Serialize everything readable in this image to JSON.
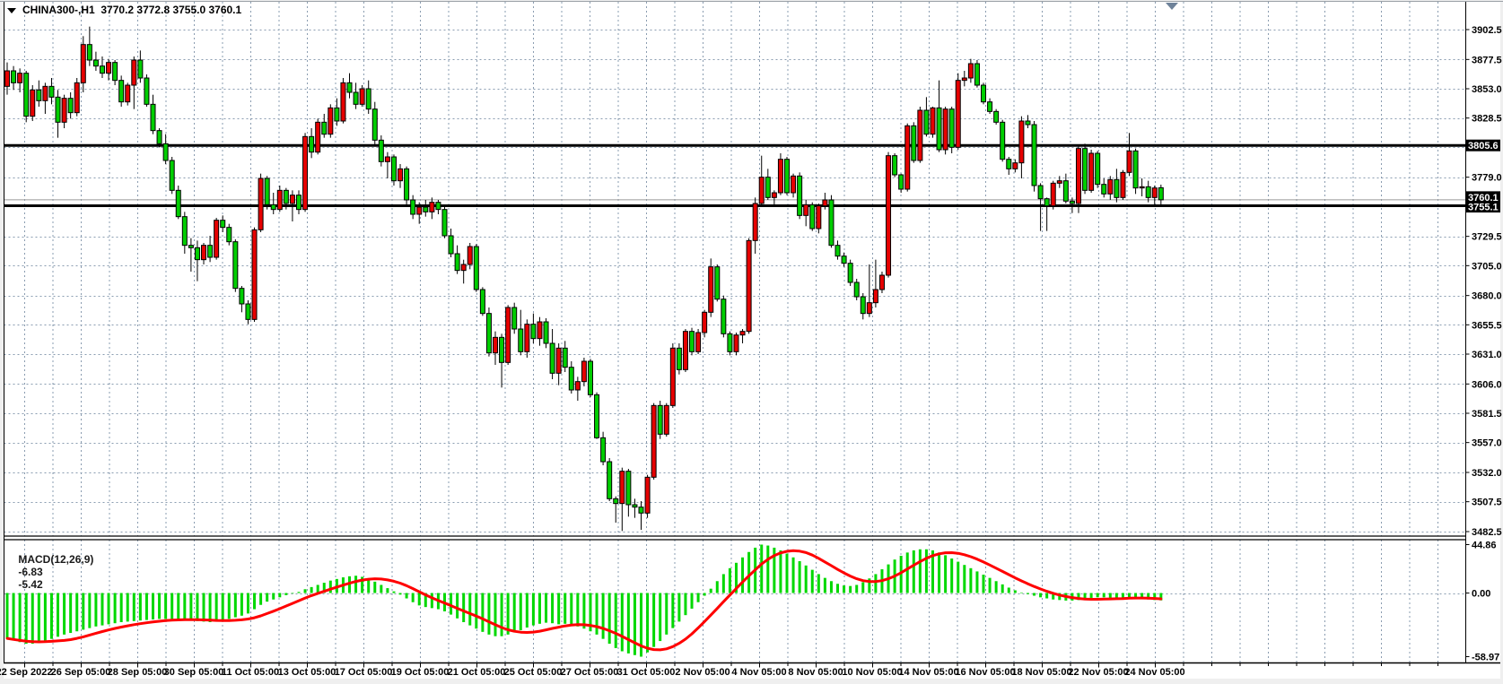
{
  "title": {
    "symbol_period": "CHINA300-,H1",
    "ohlc": "3770.2 3772.8 3755.0 3760.1",
    "open": "3770.2",
    "high": "3772.8",
    "low": "3755.0",
    "close": "3760.1"
  },
  "colors": {
    "bull_candle": "#e60000",
    "bear_candle": "#00ce00",
    "candle_border": "#000000",
    "macd_histogram": "#00d800",
    "macd_signal": "#ff0000",
    "grid": "#8a9cb0",
    "hline": "#000000",
    "current_price_line": "#999999",
    "tag_bg": "#000000",
    "tag_text": "#ffffff",
    "panel_bg": "#ffffff",
    "frame": "#000000",
    "shift_marker": "#6e8299"
  },
  "chart_data": {
    "type": "candlestick",
    "subpanel_type": "bar",
    "title": "CHINA300-,H1 3770.2 3772.8 3755.0 3760.1",
    "grid": true,
    "legend_position": "none",
    "price_axis": {
      "side": "right",
      "top_price": 3902.5,
      "bottom_price": 3482.5,
      "ticks": [
        {
          "p": 3902.5,
          "t": "3902.5"
        },
        {
          "p": 3877.5,
          "t": "3877.5"
        },
        {
          "p": 3853.0,
          "t": "3853.0"
        },
        {
          "p": 3828.5,
          "t": "3828.5"
        },
        {
          "p": 3804.0,
          "t": ""
        },
        {
          "p": 3779.0,
          "t": "3779.0"
        },
        {
          "p": 3754.5,
          "t": ""
        },
        {
          "p": 3729.5,
          "t": "3729.5"
        },
        {
          "p": 3705.0,
          "t": "3705.0"
        },
        {
          "p": 3680.0,
          "t": "3680.0"
        },
        {
          "p": 3655.5,
          "t": "3655.5"
        },
        {
          "p": 3631.0,
          "t": "3631.0"
        },
        {
          "p": 3606.0,
          "t": "3606.0"
        },
        {
          "p": 3581.5,
          "t": "3581.5"
        },
        {
          "p": 3557.0,
          "t": "3557.0"
        },
        {
          "p": 3532.0,
          "t": "3532.0"
        },
        {
          "p": 3507.5,
          "t": "3507.5"
        },
        {
          "p": 3482.5,
          "t": "3482.5"
        }
      ]
    },
    "time_axis": {
      "labels": [
        "22 Sep 2022",
        "26 Sep 05:00",
        "28 Sep 05:00",
        "30 Sep 05:00",
        "11 Oct 05:00",
        "13 Oct 05:00",
        "17 Oct 05:00",
        "19 Oct 05:00",
        "21 Oct 05:00",
        "25 Oct 05:00",
        "27 Oct 05:00",
        "31 Oct 05:00",
        "2 Nov 05:00",
        "4 Nov 05:00",
        "8 Nov 05:00",
        "10 Nov 05:00",
        "14 Nov 05:00",
        "16 Nov 05:00",
        "18 Nov 05:00",
        "22 Nov 05:00",
        "24 Nov 05:00"
      ]
    },
    "hlines": [
      {
        "price": 3805.6,
        "label": "3805.6"
      },
      {
        "price": 3755.1,
        "label": "3755.1"
      }
    ],
    "current_price": {
      "price": 3760.1,
      "label": "3760.1"
    },
    "candles_ohlc": [
      [
        3855,
        3875,
        3848,
        3868
      ],
      [
        3868,
        3872,
        3852,
        3858
      ],
      [
        3858,
        3870,
        3850,
        3866
      ],
      [
        3866,
        3868,
        3825,
        3830
      ],
      [
        3830,
        3856,
        3826,
        3852
      ],
      [
        3852,
        3860,
        3838,
        3843
      ],
      [
        3843,
        3858,
        3832,
        3855
      ],
      [
        3855,
        3862,
        3840,
        3846
      ],
      [
        3846,
        3852,
        3812,
        3825
      ],
      [
        3825,
        3848,
        3820,
        3845
      ],
      [
        3845,
        3850,
        3828,
        3833
      ],
      [
        3833,
        3862,
        3830,
        3858
      ],
      [
        3858,
        3897,
        3850,
        3890
      ],
      [
        3890,
        3905,
        3872,
        3877
      ],
      [
        3877,
        3884,
        3868,
        3872
      ],
      [
        3872,
        3880,
        3862,
        3866
      ],
      [
        3866,
        3878,
        3860,
        3875
      ],
      [
        3875,
        3877,
        3856,
        3860
      ],
      [
        3860,
        3864,
        3838,
        3842
      ],
      [
        3842,
        3858,
        3839,
        3856
      ],
      [
        3856,
        3880,
        3836,
        3877
      ],
      [
        3877,
        3885,
        3858,
        3862
      ],
      [
        3862,
        3865,
        3838,
        3840
      ],
      [
        3840,
        3848,
        3815,
        3818
      ],
      [
        3818,
        3820,
        3804,
        3807
      ],
      [
        3807,
        3815,
        3790,
        3793
      ],
      [
        3793,
        3796,
        3765,
        3768
      ],
      [
        3768,
        3772,
        3744,
        3746
      ],
      [
        3746,
        3750,
        3715,
        3722
      ],
      [
        3722,
        3728,
        3700,
        3720
      ],
      [
        3720,
        3726,
        3692,
        3710
      ],
      [
        3710,
        3724,
        3706,
        3722
      ],
      [
        3722,
        3730,
        3708,
        3712
      ],
      [
        3712,
        3745,
        3710,
        3743
      ],
      [
        3743,
        3747,
        3733,
        3737
      ],
      [
        3737,
        3740,
        3722,
        3725
      ],
      [
        3725,
        3727,
        3683,
        3686
      ],
      [
        3686,
        3688,
        3666,
        3673
      ],
      [
        3673,
        3676,
        3656,
        3660
      ],
      [
        3660,
        3737,
        3658,
        3735
      ],
      [
        3735,
        3782,
        3733,
        3778
      ],
      [
        3778,
        3780,
        3752,
        3756
      ],
      [
        3756,
        3766,
        3748,
        3752
      ],
      [
        3752,
        3772,
        3750,
        3768
      ],
      [
        3768,
        3770,
        3752,
        3757
      ],
      [
        3757,
        3768,
        3742,
        3764
      ],
      [
        3764,
        3768,
        3748,
        3752
      ],
      [
        3752,
        3816,
        3750,
        3813
      ],
      [
        3813,
        3820,
        3795,
        3800
      ],
      [
        3800,
        3828,
        3798,
        3825
      ],
      [
        3825,
        3832,
        3812,
        3815
      ],
      [
        3815,
        3840,
        3812,
        3837
      ],
      [
        3837,
        3845,
        3822,
        3826
      ],
      [
        3826,
        3862,
        3824,
        3858
      ],
      [
        3858,
        3866,
        3845,
        3850
      ],
      [
        3850,
        3858,
        3836,
        3840
      ],
      [
        3840,
        3856,
        3838,
        3853
      ],
      [
        3853,
        3860,
        3832,
        3836
      ],
      [
        3836,
        3842,
        3806,
        3810
      ],
      [
        3810,
        3814,
        3788,
        3792
      ],
      [
        3792,
        3800,
        3778,
        3796
      ],
      [
        3796,
        3798,
        3772,
        3776
      ],
      [
        3776,
        3790,
        3770,
        3786
      ],
      [
        3786,
        3788,
        3756,
        3760
      ],
      [
        3760,
        3764,
        3744,
        3748
      ],
      [
        3748,
        3758,
        3740,
        3754
      ],
      [
        3754,
        3760,
        3746,
        3750
      ],
      [
        3750,
        3762,
        3744,
        3758
      ],
      [
        3758,
        3760,
        3748,
        3752
      ],
      [
        3752,
        3754,
        3728,
        3730
      ],
      [
        3730,
        3736,
        3712,
        3715
      ],
      [
        3715,
        3722,
        3698,
        3701
      ],
      [
        3701,
        3710,
        3690,
        3706
      ],
      [
        3706,
        3724,
        3702,
        3721
      ],
      [
        3721,
        3723,
        3683,
        3685
      ],
      [
        3685,
        3687,
        3663,
        3665
      ],
      [
        3665,
        3670,
        3629,
        3632
      ],
      [
        3632,
        3650,
        3622,
        3645
      ],
      [
        3645,
        3648,
        3603,
        3624
      ],
      [
        3624,
        3672,
        3622,
        3670
      ],
      [
        3670,
        3674,
        3648,
        3652
      ],
      [
        3652,
        3668,
        3630,
        3633
      ],
      [
        3633,
        3660,
        3628,
        3656
      ],
      [
        3656,
        3665,
        3640,
        3644
      ],
      [
        3644,
        3662,
        3638,
        3658
      ],
      [
        3658,
        3661,
        3636,
        3640
      ],
      [
        3640,
        3652,
        3610,
        3615
      ],
      [
        3615,
        3640,
        3605,
        3636
      ],
      [
        3636,
        3642,
        3616,
        3620
      ],
      [
        3620,
        3625,
        3598,
        3601
      ],
      [
        3601,
        3612,
        3592,
        3608
      ],
      [
        3608,
        3628,
        3604,
        3625
      ],
      [
        3625,
        3627,
        3595,
        3597
      ],
      [
        3597,
        3599,
        3560,
        3561
      ],
      [
        3561,
        3566,
        3538,
        3541
      ],
      [
        3541,
        3544,
        3508,
        3510
      ],
      [
        3510,
        3512,
        3490,
        3506
      ],
      [
        3506,
        3536,
        3483,
        3533
      ],
      [
        3533,
        3535,
        3495,
        3505
      ],
      [
        3505,
        3510,
        3494,
        3503
      ],
      [
        3503,
        3508,
        3484,
        3498
      ],
      [
        3498,
        3530,
        3494,
        3528
      ],
      [
        3528,
        3590,
        3526,
        3588
      ],
      [
        3588,
        3592,
        3560,
        3564
      ],
      [
        3564,
        3590,
        3562,
        3588
      ],
      [
        3588,
        3640,
        3586,
        3636
      ],
      [
        3636,
        3640,
        3614,
        3618
      ],
      [
        3618,
        3652,
        3616,
        3650
      ],
      [
        3650,
        3653,
        3630,
        3633
      ],
      [
        3633,
        3652,
        3631,
        3649
      ],
      [
        3649,
        3668,
        3645,
        3666
      ],
      [
        3666,
        3711,
        3662,
        3704
      ],
      [
        3704,
        3706,
        3675,
        3677
      ],
      [
        3677,
        3680,
        3645,
        3648
      ],
      [
        3648,
        3650,
        3630,
        3633
      ],
      [
        3633,
        3649,
        3630,
        3647
      ],
      [
        3647,
        3652,
        3640,
        3650
      ],
      [
        3650,
        3728,
        3648,
        3726
      ],
      [
        3726,
        3762,
        3715,
        3757
      ],
      [
        3757,
        3797,
        3755,
        3779
      ],
      [
        3779,
        3786,
        3760,
        3762
      ],
      [
        3762,
        3768,
        3756,
        3766
      ],
      [
        3766,
        3799,
        3764,
        3794
      ],
      [
        3794,
        3796,
        3764,
        3766
      ],
      [
        3766,
        3782,
        3762,
        3780
      ],
      [
        3780,
        3783,
        3744,
        3747
      ],
      [
        3747,
        3760,
        3738,
        3756
      ],
      [
        3756,
        3758,
        3734,
        3736
      ],
      [
        3736,
        3757,
        3732,
        3755
      ],
      [
        3755,
        3766,
        3752,
        3760
      ],
      [
        3760,
        3764,
        3720,
        3722
      ],
      [
        3722,
        3726,
        3710,
        3713
      ],
      [
        3713,
        3716,
        3704,
        3707
      ],
      [
        3707,
        3710,
        3688,
        3691
      ],
      [
        3691,
        3694,
        3676,
        3679
      ],
      [
        3679,
        3682,
        3660,
        3665
      ],
      [
        3665,
        3706,
        3662,
        3674
      ],
      [
        3674,
        3710,
        3670,
        3685
      ],
      [
        3685,
        3700,
        3682,
        3697
      ],
      [
        3697,
        3800,
        3695,
        3797
      ],
      [
        3797,
        3799,
        3779,
        3781
      ],
      [
        3781,
        3782,
        3766,
        3769
      ],
      [
        3769,
        3824,
        3767,
        3822
      ],
      [
        3822,
        3825,
        3791,
        3793
      ],
      [
        3793,
        3838,
        3791,
        3835
      ],
      [
        3835,
        3846,
        3813,
        3815
      ],
      [
        3815,
        3838,
        3812,
        3837
      ],
      [
        3837,
        3860,
        3800,
        3802
      ],
      [
        3802,
        3838,
        3798,
        3836
      ],
      [
        3836,
        3838,
        3799,
        3804
      ],
      [
        3804,
        3866,
        3802,
        3860
      ],
      [
        3860,
        3868,
        3855,
        3862
      ],
      [
        3862,
        3878,
        3858,
        3874
      ],
      [
        3874,
        3877,
        3854,
        3856
      ],
      [
        3856,
        3858,
        3840,
        3842
      ],
      [
        3842,
        3845,
        3832,
        3834
      ],
      [
        3834,
        3836,
        3823,
        3825
      ],
      [
        3825,
        3827,
        3792,
        3794
      ],
      [
        3794,
        3796,
        3781,
        3786
      ],
      [
        3786,
        3794,
        3783,
        3791
      ],
      [
        3791,
        3830,
        3778,
        3826
      ],
      [
        3826,
        3831,
        3820,
        3823
      ],
      [
        3823,
        3826,
        3767,
        3772
      ],
      [
        3772,
        3774,
        3734,
        3761
      ],
      [
        3761,
        3762,
        3734,
        3755
      ],
      [
        3755,
        3776,
        3752,
        3774
      ],
      [
        3774,
        3780,
        3770,
        3776
      ],
      [
        3776,
        3782,
        3757,
        3759
      ],
      [
        3759,
        3762,
        3749,
        3757
      ],
      [
        3757,
        3806,
        3749,
        3803
      ],
      [
        3803,
        3807,
        3765,
        3768
      ],
      [
        3768,
        3802,
        3766,
        3799
      ],
      [
        3799,
        3801,
        3770,
        3773
      ],
      [
        3773,
        3778,
        3762,
        3765
      ],
      [
        3765,
        3780,
        3760,
        3777
      ],
      [
        3777,
        3786,
        3758,
        3762
      ],
      [
        3762,
        3785,
        3760,
        3783
      ],
      [
        3783,
        3816,
        3780,
        3801
      ],
      [
        3801,
        3803,
        3765,
        3770
      ],
      [
        3770,
        3778,
        3763,
        3771
      ],
      [
        3771,
        3776,
        3758,
        3762
      ],
      [
        3762,
        3772,
        3756,
        3770
      ],
      [
        3770.2,
        3772.8,
        3755.0,
        3760.1
      ]
    ],
    "macd": {
      "label": "MACD(12,26,9)",
      "main_value": "-6.83",
      "signal_value": "-5.42",
      "signal_period": 9,
      "axis": {
        "max": 44.86,
        "max_label": "44.86",
        "zero_label": "0.00",
        "min": -58.97,
        "min_label": "-58.97"
      },
      "histogram": [
        -42,
        -44,
        -45.5,
        -47,
        -47,
        -46,
        -44.5,
        -42.5,
        -40.5,
        -38.5,
        -37,
        -35.5,
        -34,
        -32.5,
        -31,
        -30,
        -29,
        -28,
        -27,
        -26.5,
        -26,
        -25.5,
        -25,
        -24.5,
        -24,
        -24,
        -24,
        -24.5,
        -25,
        -25.5,
        -26,
        -26.5,
        -27,
        -26,
        -25,
        -24,
        -22.5,
        -21,
        -19,
        -15,
        -11,
        -8,
        -6,
        -4,
        -2,
        -0.5,
        1,
        3.5,
        5.5,
        7.5,
        9.5,
        11.5,
        13,
        14.5,
        15.5,
        16,
        15,
        13,
        10.5,
        7.5,
        4.5,
        1.5,
        -1.5,
        -5,
        -8.5,
        -11.5,
        -13,
        -14,
        -15,
        -17,
        -20,
        -23.5,
        -27,
        -30,
        -33,
        -36,
        -38.5,
        -40,
        -40,
        -38.5,
        -36.5,
        -34.5,
        -32,
        -30,
        -28.5,
        -27.5,
        -28,
        -29,
        -28.5,
        -29.5,
        -31,
        -33,
        -35.5,
        -38.5,
        -42.5,
        -47,
        -51,
        -54,
        -56,
        -57.5,
        -58.97,
        -55,
        -50,
        -44.5,
        -38.5,
        -32.5,
        -26.5,
        -20.5,
        -14.5,
        -8.5,
        -2.5,
        4,
        11,
        17.5,
        23,
        28,
        33,
        38,
        42,
        44.86,
        44,
        42,
        39.5,
        36.5,
        33,
        29.5,
        25.5,
        21.5,
        17.5,
        14,
        11,
        8.5,
        7,
        6.5,
        7.5,
        10,
        13.5,
        17.5,
        22,
        26.5,
        31,
        34.5,
        37.5,
        39.5,
        40.5,
        40.5,
        39.5,
        37.5,
        35,
        32,
        29,
        26,
        23,
        20,
        17,
        14,
        11,
        8,
        5,
        2.5,
        0.5,
        -1,
        -2.5,
        -4,
        -5,
        -6,
        -6.5,
        -7,
        -7,
        -6.5,
        -5.5,
        -4.5,
        -4,
        -4,
        -4.5,
        -5,
        -5,
        -4.5,
        -4.5,
        -5.5,
        -6,
        -6.5,
        -6.83
      ]
    }
  }
}
